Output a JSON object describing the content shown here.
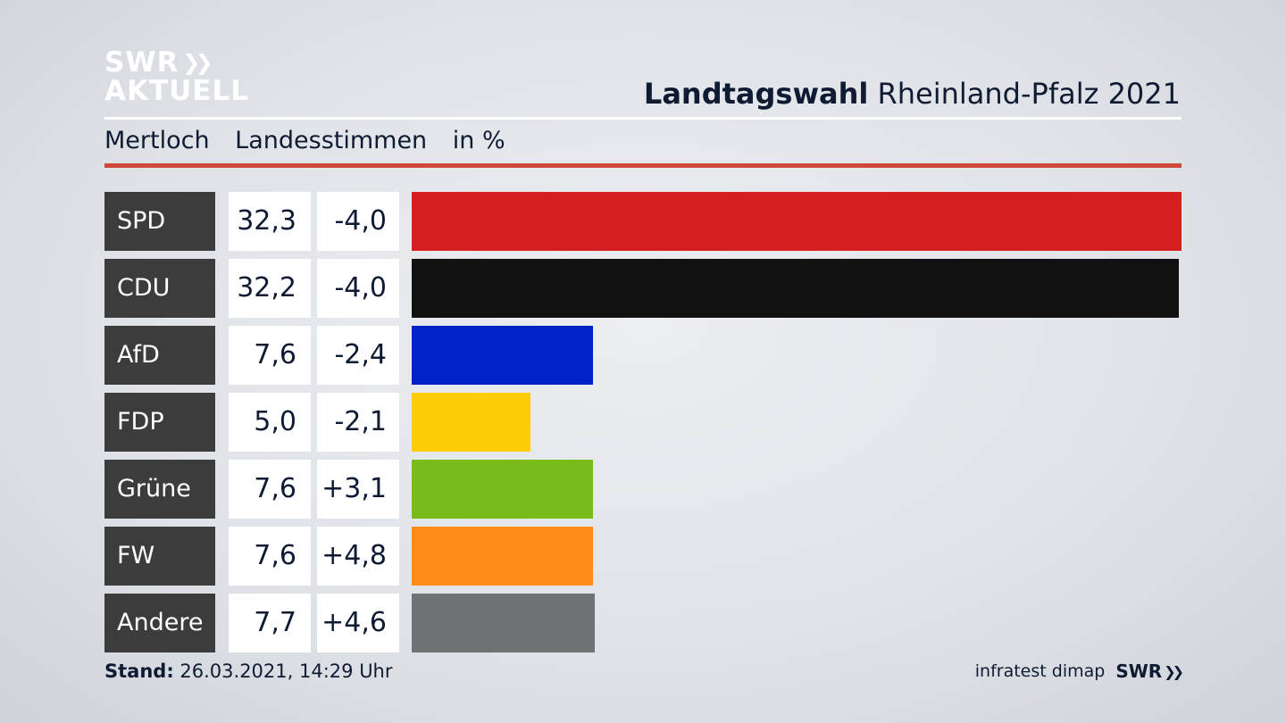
{
  "logo": {
    "line1": "SWR",
    "line2": "AKTUELL",
    "icon": "double-chevron-icon"
  },
  "header": {
    "title_bold": "Landtagswahl",
    "title_rest": "Rheinland-Pfalz 2021"
  },
  "subheader": {
    "location": "Mertloch",
    "metric": "Landesstimmen",
    "unit": "in %"
  },
  "chart_data": {
    "type": "bar",
    "orientation": "horizontal",
    "categories": [
      "SPD",
      "CDU",
      "AfD",
      "FDP",
      "Grüne",
      "FW",
      "Andere"
    ],
    "values": [
      32.3,
      32.2,
      7.6,
      5.0,
      7.6,
      7.6,
      7.7
    ],
    "value_labels": [
      "32,3",
      "32,2",
      "7,6",
      "5,0",
      "7,6",
      "7,6",
      "7,7"
    ],
    "diff_values": [
      -4.0,
      -4.0,
      -2.4,
      -2.1,
      3.1,
      4.8,
      4.6
    ],
    "diff_labels": [
      "-4,0",
      "-4,0",
      "-2,4",
      "-2,1",
      "+3,1",
      "+4,8",
      "+4,6"
    ],
    "colors": [
      "#d51f20",
      "#111111",
      "#0021c8",
      "#ffcc0a",
      "#79bb1b",
      "#fe8c18",
      "#717273"
    ],
    "xlim": [
      0,
      32.3
    ]
  },
  "footer": {
    "stand_label": "Stand:",
    "stand_value": "26.03.2021, 14:29 Uhr",
    "source": "infratest dimap",
    "brand": "SWR",
    "brand_icon": "double-chevron-icon"
  }
}
